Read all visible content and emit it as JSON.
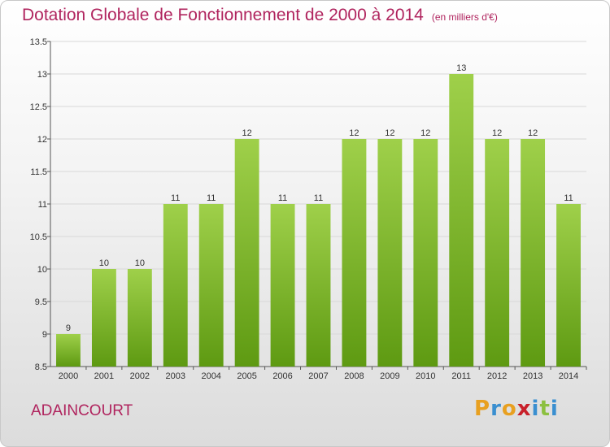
{
  "title": "Dotation Globale de Fonctionnement de 2000 à 2014",
  "unit_note": "(en milliers d'€)",
  "commune": "ADAINCOURT",
  "logo": {
    "letters": [
      "P",
      "r",
      "o",
      "x",
      "i",
      "t",
      "i"
    ],
    "colors": [
      "#e8a020",
      "#3a8fd0",
      "#e8a020",
      "#c8202a",
      "#3a8fd0",
      "#8cc040",
      "#3a8fd0"
    ]
  },
  "colors": {
    "bar_light": "#9fd04a",
    "bar_dark": "#5e9a12",
    "title": "#b0245e",
    "grid": "#d8d8d8"
  },
  "chart_data": {
    "type": "bar",
    "title": "Dotation Globale de Fonctionnement de 2000 à 2014",
    "subtitle": "(en milliers d'€)",
    "categories": [
      "2000",
      "2001",
      "2002",
      "2003",
      "2004",
      "2005",
      "2006",
      "2007",
      "2008",
      "2009",
      "2010",
      "2011",
      "2012",
      "2013",
      "2014"
    ],
    "values": [
      9,
      10,
      10,
      11,
      11,
      12,
      11,
      11,
      12,
      12,
      12,
      13,
      12,
      12,
      11
    ],
    "data_labels": [
      "9",
      "10",
      "10",
      "11",
      "11",
      "12",
      "11",
      "11",
      "12",
      "12",
      "12",
      "13",
      "12",
      "12",
      "11"
    ],
    "ylim": [
      8.5,
      13.5
    ],
    "yticks": [
      8.5,
      9,
      9.5,
      10,
      10.5,
      11,
      11.5,
      12,
      12.5,
      13,
      13.5
    ],
    "ytick_labels": [
      "8.5",
      "9",
      "9.5",
      "10",
      "10.5",
      "11",
      "11.5",
      "12",
      "12.5",
      "13",
      "13.5"
    ],
    "grid": true,
    "xlabel": "",
    "ylabel": ""
  }
}
